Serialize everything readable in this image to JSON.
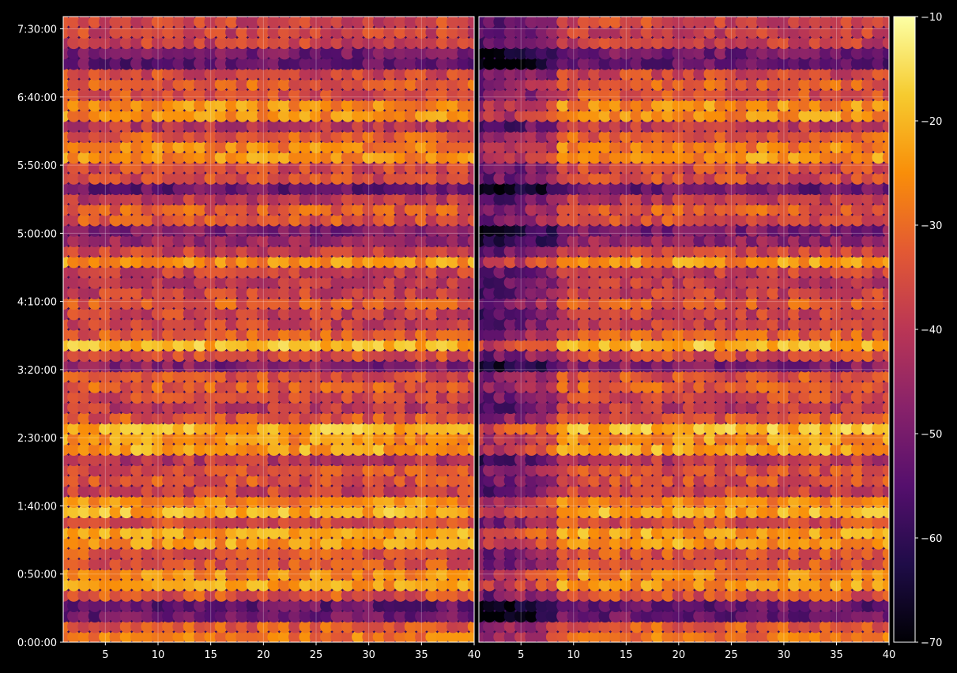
{
  "chart_data": {
    "type": "heatmap",
    "title": "",
    "background": "#000000",
    "colormap": "inferno",
    "grid": true,
    "panels": [
      {
        "name": "",
        "x_ticks": [
          "5",
          "10",
          "15",
          "20",
          "25",
          "30",
          "35",
          "40"
        ],
        "xlim": [
          1,
          40
        ]
      },
      {
        "name": "",
        "x_ticks": [
          "5",
          "10",
          "15",
          "20",
          "25",
          "30",
          "35",
          "40"
        ],
        "xlim": [
          1,
          40
        ]
      }
    ],
    "x_tick_values": [
      5,
      10,
      15,
      20,
      25,
      30,
      35,
      40
    ],
    "y_ticks": [
      "0:00:00",
      "0:50:00",
      "1:40:00",
      "2:30:00",
      "3:20:00",
      "4:10:00",
      "5:00:00",
      "5:50:00",
      "6:40:00",
      "7:30:00"
    ],
    "y_tick_seconds": [
      0,
      3000,
      6000,
      9000,
      12000,
      15000,
      18000,
      21000,
      24000,
      27000
    ],
    "ylim_seconds": [
      0,
      27540
    ],
    "time_bins": 60,
    "colorbar": {
      "range": [
        -70,
        -10
      ],
      "ticks": [
        "−10",
        "−20",
        "−30",
        "−40",
        "−50",
        "−60",
        "−70"
      ],
      "tick_values": [
        -10,
        -20,
        -30,
        -40,
        -50,
        -60,
        -70
      ]
    },
    "bright_rows_seconds": [
      200,
      9250,
      8400,
      21700,
      23300,
      16700,
      13100,
      6100,
      4500,
      2750
    ],
    "dark_rows_seconds": [
      17800,
      19900,
      12100,
      25700,
      1400
    ],
    "right_panel_darker_x_range": [
      1,
      8
    ]
  }
}
